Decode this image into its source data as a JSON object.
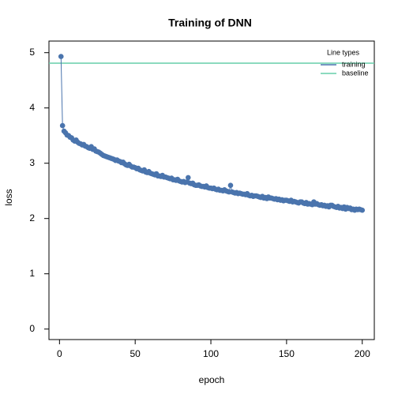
{
  "chart_data": {
    "type": "scatter",
    "title": "Training of DNN",
    "x_label": "epoch",
    "y_label": "loss",
    "x": [
      1,
      2,
      3,
      4,
      5,
      6,
      7,
      8,
      9,
      10,
      11,
      12,
      13,
      14,
      15,
      16,
      17,
      18,
      19,
      20,
      21,
      22,
      23,
      24,
      25,
      26,
      27,
      28,
      29,
      30,
      31,
      32,
      33,
      34,
      35,
      36,
      37,
      38,
      39,
      40,
      41,
      42,
      43,
      44,
      45,
      46,
      47,
      48,
      49,
      50,
      51,
      52,
      53,
      54,
      55,
      56,
      57,
      58,
      59,
      60,
      61,
      62,
      63,
      64,
      65,
      66,
      67,
      68,
      69,
      70,
      71,
      72,
      73,
      74,
      75,
      76,
      77,
      78,
      79,
      80,
      81,
      82,
      83,
      84,
      85,
      86,
      87,
      88,
      89,
      90,
      91,
      92,
      93,
      94,
      95,
      96,
      97,
      98,
      99,
      100,
      101,
      102,
      103,
      104,
      105,
      106,
      107,
      108,
      109,
      110,
      111,
      112,
      113,
      114,
      115,
      116,
      117,
      118,
      119,
      120,
      121,
      122,
      123,
      124,
      125,
      126,
      127,
      128,
      129,
      130,
      131,
      132,
      133,
      134,
      135,
      136,
      137,
      138,
      139,
      140,
      141,
      142,
      143,
      144,
      145,
      146,
      147,
      148,
      149,
      150,
      151,
      152,
      153,
      154,
      155,
      156,
      157,
      158,
      159,
      160,
      161,
      162,
      163,
      164,
      165,
      166,
      167,
      168,
      169,
      170,
      171,
      172,
      173,
      174,
      175,
      176,
      177,
      178,
      179,
      180,
      181,
      182,
      183,
      184,
      185,
      186,
      187,
      188,
      189,
      190,
      191,
      192,
      193,
      194,
      195,
      196,
      197,
      198,
      199,
      200
    ],
    "series": [
      {
        "name": "training",
        "color": "#4a74ad",
        "values": [
          4.93,
          3.68,
          3.58,
          3.55,
          3.51,
          3.5,
          3.47,
          3.46,
          3.42,
          3.4,
          3.42,
          3.38,
          3.36,
          3.35,
          3.33,
          3.34,
          3.31,
          3.3,
          3.28,
          3.27,
          3.3,
          3.25,
          3.26,
          3.22,
          3.21,
          3.2,
          3.18,
          3.16,
          3.14,
          3.13,
          3.12,
          3.11,
          3.1,
          3.09,
          3.08,
          3.07,
          3.05,
          3.06,
          3.04,
          3.03,
          3.01,
          3.02,
          2.99,
          2.97,
          2.96,
          2.98,
          2.95,
          2.93,
          2.93,
          2.92,
          2.9,
          2.91,
          2.88,
          2.87,
          2.86,
          2.88,
          2.84,
          2.83,
          2.85,
          2.82,
          2.81,
          2.8,
          2.79,
          2.81,
          2.77,
          2.77,
          2.76,
          2.78,
          2.75,
          2.75,
          2.74,
          2.73,
          2.72,
          2.73,
          2.7,
          2.7,
          2.69,
          2.71,
          2.68,
          2.67,
          2.66,
          2.67,
          2.65,
          2.66,
          2.74,
          2.64,
          2.63,
          2.64,
          2.61,
          2.6,
          2.6,
          2.61,
          2.59,
          2.58,
          2.58,
          2.57,
          2.59,
          2.56,
          2.55,
          2.55,
          2.54,
          2.55,
          2.53,
          2.52,
          2.53,
          2.51,
          2.51,
          2.5,
          2.52,
          2.5,
          2.49,
          2.48,
          2.6,
          2.48,
          2.47,
          2.46,
          2.47,
          2.45,
          2.46,
          2.45,
          2.44,
          2.44,
          2.43,
          2.45,
          2.42,
          2.41,
          2.42,
          2.4,
          2.41,
          2.41,
          2.4,
          2.39,
          2.38,
          2.4,
          2.37,
          2.38,
          2.36,
          2.39,
          2.37,
          2.37,
          2.36,
          2.35,
          2.36,
          2.34,
          2.35,
          2.33,
          2.34,
          2.32,
          2.33,
          2.33,
          2.32,
          2.31,
          2.33,
          2.3,
          2.31,
          2.3,
          2.29,
          2.28,
          2.3,
          2.3,
          2.28,
          2.27,
          2.29,
          2.26,
          2.27,
          2.26,
          2.25,
          2.3,
          2.26,
          2.27,
          2.25,
          2.24,
          2.25,
          2.23,
          2.24,
          2.22,
          2.23,
          2.21,
          2.24,
          2.24,
          2.22,
          2.21,
          2.2,
          2.22,
          2.19,
          2.2,
          2.18,
          2.21,
          2.17,
          2.2,
          2.18,
          2.19,
          2.16,
          2.17,
          2.15,
          2.17,
          2.16,
          2.17,
          2.16,
          2.15
        ]
      }
    ],
    "hlines": [
      {
        "name": "baseline",
        "color": "#66cdaa",
        "value": 4.81
      }
    ],
    "legend_title": "Line types",
    "xlim": [
      -6.96,
      207.96
    ],
    "ylim": [
      -0.19,
      5.21
    ],
    "xticks": [
      0,
      50,
      100,
      150,
      200
    ],
    "yticks": [
      0,
      1,
      2,
      3,
      4,
      5
    ]
  }
}
